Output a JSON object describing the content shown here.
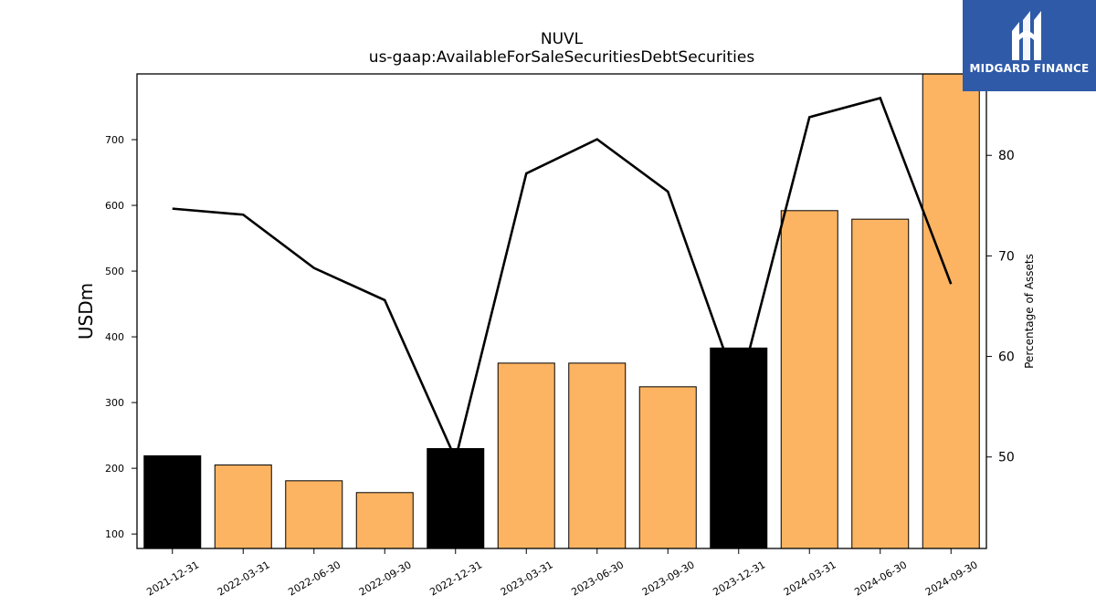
{
  "chart_data": {
    "type": "bar",
    "title": "NUVL",
    "subtitle": "us-gaap:AvailableForSaleSecuritiesDebtSecurities",
    "ylabel": "USDm",
    "y2label": "Percentage of Assets",
    "categories": [
      "2021-12-31",
      "2022-03-31",
      "2022-06-30",
      "2022-09-30",
      "2022-12-31",
      "2023-03-31",
      "2023-06-30",
      "2023-09-30",
      "2023-12-31",
      "2024-03-31",
      "2024-06-30",
      "2024-09-30"
    ],
    "series": [
      {
        "values": [
          219,
          205,
          181,
          163,
          230,
          360,
          360,
          324,
          383,
          592,
          579,
          800
        ],
        "bar_colors": [
          "#000000",
          "#fdb462",
          "#fdb462",
          "#fdb462",
          "#000000",
          "#fdb462",
          "#fdb462",
          "#fdb462",
          "#000000",
          "#fdb462",
          "#fdb462",
          "#fdb462"
        ]
      },
      {
        "type": "line",
        "axis": "right",
        "values": [
          74.7,
          74.1,
          68.8,
          65.6,
          49.8,
          78.2,
          81.6,
          76.4,
          56.5,
          83.8,
          85.7,
          67.2
        ],
        "color": "#000000"
      }
    ],
    "ylim": [
      78,
      800
    ],
    "y2lim": [
      40.9,
      88.1
    ],
    "yticks": [
      100,
      200,
      300,
      400,
      500,
      600,
      700
    ],
    "y2ticks": [
      50,
      60,
      70,
      80
    ],
    "grid": false
  },
  "logo": {
    "text": "MIDGARD FINANCE"
  }
}
